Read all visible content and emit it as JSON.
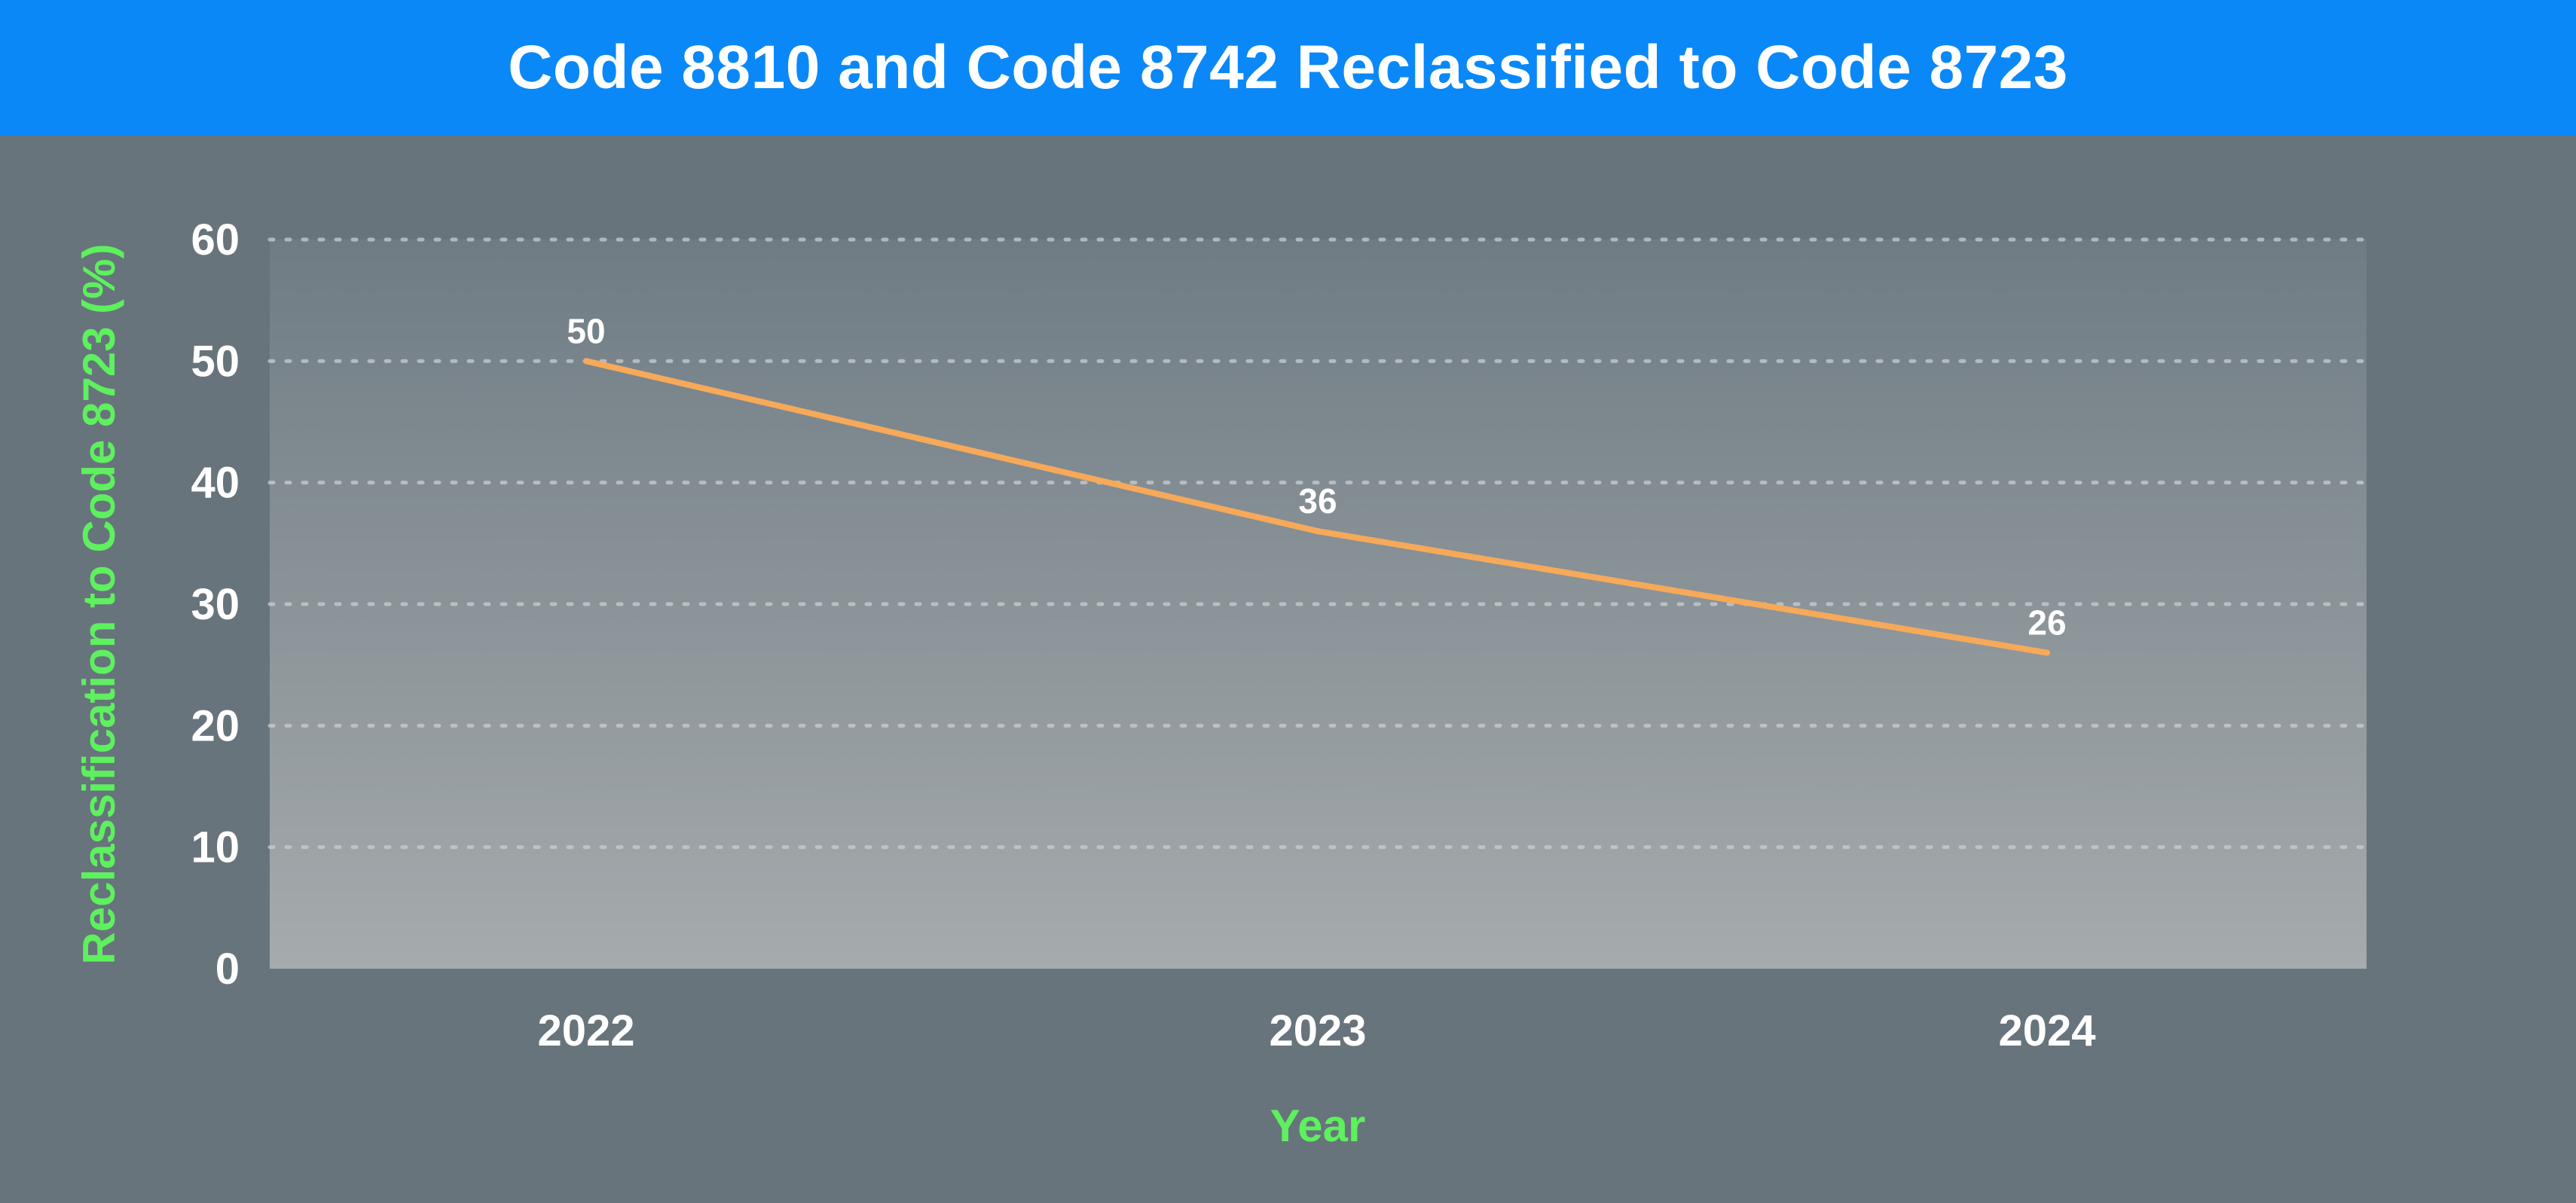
{
  "chart_data": {
    "type": "line",
    "title": "Code 8810 and Code 8742 Reclassified to Code 8723",
    "xlabel": "Year",
    "ylabel": "Reclassification to Code 8723 (%)",
    "categories": [
      "2022",
      "2023",
      "2024"
    ],
    "series": [
      {
        "values": [
          50,
          36,
          26
        ]
      }
    ],
    "data_labels": [
      "50",
      "36",
      "26"
    ],
    "ylim": [
      0,
      60
    ],
    "yticks": [
      0,
      10,
      20,
      30,
      40,
      50,
      60
    ],
    "ytick_labels": [
      "0",
      "10",
      "20",
      "30",
      "40",
      "50",
      "60"
    ],
    "grid": true,
    "grid_style": "dotted",
    "legend": "none"
  },
  "colors": {
    "page_background": "#67747c",
    "title_bar": "#0a88f7",
    "title_text": "#ffffff",
    "plot_gradient_top": "#6f7c84",
    "plot_gradient_bottom": "#a6abad",
    "line": "#f7a95a",
    "axis_title": "#5ef05e",
    "tick_text": "#ffffff",
    "grid": "#c9ced1"
  }
}
